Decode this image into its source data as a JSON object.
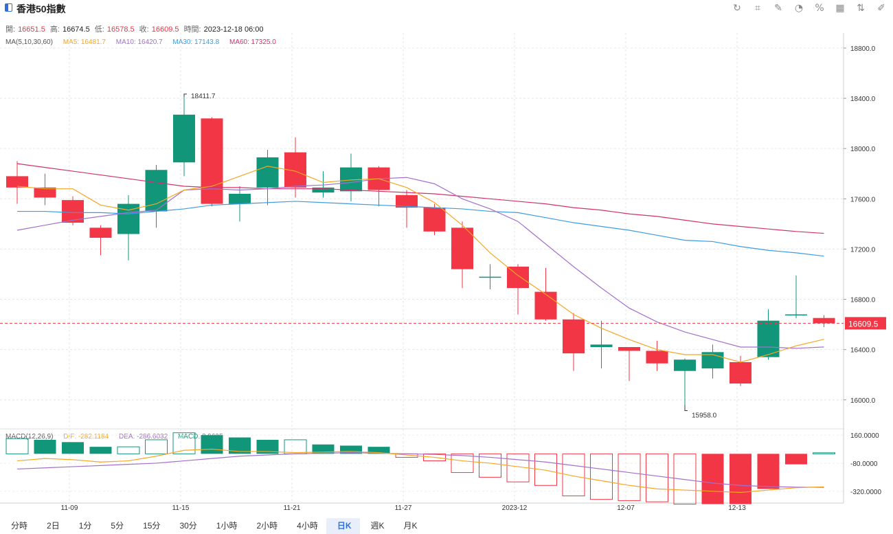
{
  "header": {
    "title": "香港50指數"
  },
  "toolbar": [
    "refresh-icon",
    "crop-icon",
    "draw-icon",
    "pie-icon",
    "percent-icon",
    "grid-icon",
    "compare-icon",
    "edit-icon"
  ],
  "ohlc": {
    "open_label": "開:",
    "open": "16651.5",
    "high_label": "高:",
    "high": "16674.5",
    "low_label": "低:",
    "low": "16578.5",
    "close_label": "收:",
    "close": "16609.5",
    "time_label": "時間:",
    "time": "2023-12-18 06:00"
  },
  "ma_legend": {
    "label": "MA(5,10,30,60)",
    "ma5": "MA5: 16481.7",
    "ma10": "MA10: 16420.7",
    "ma30": "MA30: 17143.8",
    "ma60": "MA60: 17325.0"
  },
  "macd_legend": {
    "label": "MACD(12,26,9)",
    "dif": "DIF: -282.1184",
    "dea": "DEA: -286.6032",
    "macd": "MACD: 8.9695"
  },
  "colors": {
    "up": "#12967a",
    "down": "#f23645",
    "ma5": "#f5a623",
    "ma10": "#a36fcc",
    "ma30": "#3b9ce3",
    "ma60": "#d4306e"
  },
  "tabs": [
    "分時",
    "2日",
    "1分",
    "5分",
    "15分",
    "30分",
    "1小時",
    "2小時",
    "4小時",
    "日K",
    "週K",
    "月K"
  ],
  "active_tab": "日K",
  "chart_data": {
    "type": "candlestick",
    "ylim": [
      15780,
      18920
    ],
    "y_ticks": [
      "18800.0",
      "18400.0",
      "18000.0",
      "17600.0",
      "17200.0",
      "16800.0",
      "16400.0",
      "16000.0"
    ],
    "x_ticks": [
      {
        "i": 2,
        "label": "11-09"
      },
      {
        "i": 6,
        "label": "11-15"
      },
      {
        "i": 10,
        "label": "11-21"
      },
      {
        "i": 14,
        "label": "11-27"
      },
      {
        "i": 18,
        "label": "2023-12"
      },
      {
        "i": 22,
        "label": "12-07"
      },
      {
        "i": 26,
        "label": "12-13"
      }
    ],
    "last_price": "16609.5",
    "high_marker": "18411.7",
    "low_marker": "15958.0",
    "candles": [
      {
        "o": 17780,
        "h": 17900,
        "l": 17560,
        "c": 17690
      },
      {
        "o": 17690,
        "h": 17800,
        "l": 17550,
        "c": 17610
      },
      {
        "o": 17590,
        "h": 17620,
        "l": 17390,
        "c": 17410
      },
      {
        "o": 17370,
        "h": 17390,
        "l": 17150,
        "c": 17290
      },
      {
        "o": 17320,
        "h": 17630,
        "l": 17110,
        "c": 17560
      },
      {
        "o": 17500,
        "h": 17870,
        "l": 17370,
        "c": 17830
      },
      {
        "o": 17890,
        "h": 18411.7,
        "l": 17780,
        "c": 18270
      },
      {
        "o": 18240,
        "h": 18250,
        "l": 17540,
        "c": 17560
      },
      {
        "o": 17560,
        "h": 17700,
        "l": 17420,
        "c": 17640
      },
      {
        "o": 17690,
        "h": 17990,
        "l": 17550,
        "c": 17930
      },
      {
        "o": 17970,
        "h": 18090,
        "l": 17610,
        "c": 17690
      },
      {
        "o": 17650,
        "h": 17820,
        "l": 17610,
        "c": 17690
      },
      {
        "o": 17660,
        "h": 17960,
        "l": 17580,
        "c": 17850
      },
      {
        "o": 17850,
        "h": 17860,
        "l": 17540,
        "c": 17670
      },
      {
        "o": 17630,
        "h": 17670,
        "l": 17370,
        "c": 17530
      },
      {
        "o": 17530,
        "h": 17560,
        "l": 17310,
        "c": 17340
      },
      {
        "o": 17370,
        "h": 17420,
        "l": 16890,
        "c": 17040
      },
      {
        "o": 16980,
        "h": 17080,
        "l": 16880,
        "c": 16980
      },
      {
        "o": 17060,
        "h": 17080,
        "l": 16680,
        "c": 16890
      },
      {
        "o": 16860,
        "h": 17050,
        "l": 16630,
        "c": 16640
      },
      {
        "o": 16640,
        "h": 16690,
        "l": 16230,
        "c": 16370
      },
      {
        "o": 16420,
        "h": 16630,
        "l": 16250,
        "c": 16440
      },
      {
        "o": 16420,
        "h": 16420,
        "l": 16150,
        "c": 16390
      },
      {
        "o": 16390,
        "h": 16470,
        "l": 16230,
        "c": 16290
      },
      {
        "o": 16230,
        "h": 16330,
        "l": 15958,
        "c": 16320
      },
      {
        "o": 16250,
        "h": 16440,
        "l": 16170,
        "c": 16380
      },
      {
        "o": 16300,
        "h": 16350,
        "l": 16110,
        "c": 16130
      },
      {
        "o": 16340,
        "h": 16720,
        "l": 16320,
        "c": 16630
      },
      {
        "o": 16680,
        "h": 16990,
        "l": 16650,
        "c": 16680
      },
      {
        "o": 16651.5,
        "h": 16674.5,
        "l": 16578.5,
        "c": 16609.5
      }
    ],
    "ma5": [
      17700,
      17680,
      17680,
      17550,
      17510,
      17560,
      17670,
      17700,
      17780,
      17860,
      17820,
      17730,
      17750,
      17760,
      17690,
      17570,
      17390,
      17170,
      16990,
      16840,
      16680,
      16570,
      16480,
      16400,
      16360,
      16360,
      16300,
      16360,
      16430,
      16481.7
    ],
    "ma10": [
      17350,
      17390,
      17430,
      17460,
      17490,
      17510,
      17670,
      17680,
      17670,
      17680,
      17700,
      17710,
      17730,
      17760,
      17770,
      17720,
      17600,
      17520,
      17420,
      17240,
      17060,
      16890,
      16730,
      16620,
      16540,
      16480,
      16420,
      16420,
      16410,
      16420.7
    ],
    "ma30": [
      17500,
      17500,
      17490,
      17490,
      17480,
      17500,
      17520,
      17550,
      17560,
      17570,
      17580,
      17570,
      17560,
      17550,
      17540,
      17530,
      17520,
      17500,
      17490,
      17450,
      17410,
      17380,
      17350,
      17310,
      17270,
      17260,
      17220,
      17190,
      17170,
      17143.8
    ],
    "ma60": [
      17880,
      17850,
      17820,
      17790,
      17760,
      17730,
      17700,
      17690,
      17690,
      17680,
      17680,
      17680,
      17670,
      17660,
      17650,
      17640,
      17620,
      17600,
      17580,
      17560,
      17530,
      17510,
      17480,
      17460,
      17430,
      17400,
      17380,
      17360,
      17340,
      17325.0
    ],
    "macd_ylim": [
      -380,
      190
    ],
    "macd_ticks": [
      "160.0000",
      "-80.0000",
      "-320.0000"
    ],
    "dif": [
      -60,
      -40,
      -50,
      -70,
      -60,
      -20,
      30,
      40,
      20,
      20,
      10,
      15,
      20,
      10,
      -10,
      -30,
      -60,
      -80,
      -110,
      -140,
      -190,
      -230,
      -270,
      -300,
      -310,
      -320,
      -330,
      -310,
      -290,
      -282.1184
    ],
    "dea": [
      -130,
      -120,
      -110,
      -100,
      -90,
      -80,
      -60,
      -40,
      -20,
      -10,
      0,
      5,
      10,
      5,
      0,
      -5,
      -15,
      -30,
      -50,
      -70,
      -100,
      -130,
      -160,
      -190,
      -220,
      -250,
      -270,
      -280,
      -285,
      -286.6032
    ],
    "macd": [
      130,
      120,
      100,
      60,
      60,
      120,
      180,
      160,
      140,
      120,
      120,
      80,
      70,
      60,
      -30,
      -60,
      -160,
      -200,
      -240,
      -270,
      -360,
      -390,
      -400,
      -410,
      -430,
      -430,
      -430,
      -300,
      -90,
      8.9695
    ]
  }
}
